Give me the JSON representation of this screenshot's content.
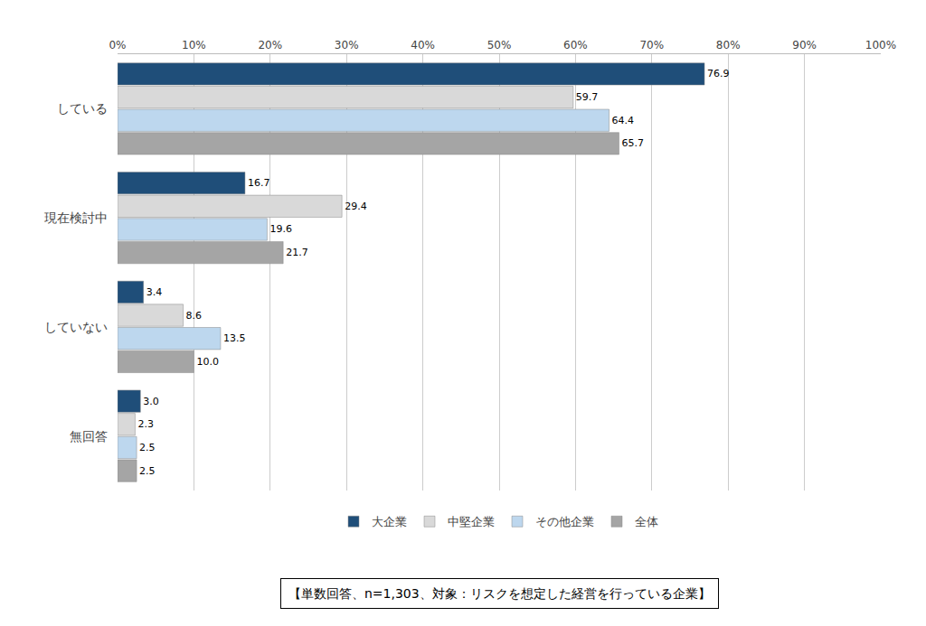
{
  "chart_data": {
    "type": "bar",
    "orientation": "horizontal",
    "categories": [
      "無回答",
      "していない",
      "現在検討中",
      "している"
    ],
    "series": [
      {
        "name": "大企業",
        "color": "#1f4e79",
        "values": [
          3.0,
          3.4,
          16.7,
          76.9
        ],
        "value_labels": [
          "3.0",
          "3.4",
          "16.7",
          "76.9"
        ]
      },
      {
        "name": "中堅企業",
        "color": "#d9d9d9",
        "values": [
          2.3,
          8.6,
          29.4,
          59.7
        ],
        "value_labels": [
          "2.3",
          "8.6",
          "29.4",
          "59.7"
        ]
      },
      {
        "name": "その他企業",
        "color": "#bdd7ee",
        "values": [
          2.5,
          13.5,
          19.6,
          64.4
        ],
        "value_labels": [
          "2.5",
          "13.5",
          "19.6",
          "64.4"
        ]
      },
      {
        "name": "全体",
        "color": "#a5a5a5",
        "values": [
          2.5,
          10.0,
          21.7,
          65.7
        ],
        "value_labels": [
          "2.5",
          "10.0",
          "21.7",
          "65.7"
        ]
      }
    ],
    "xlim": [
      0,
      100
    ],
    "xticks": [
      {
        "value": 0,
        "label": "0%"
      },
      {
        "value": 10,
        "label": "10%"
      },
      {
        "value": 20,
        "label": "20%"
      },
      {
        "value": 30,
        "label": "30%"
      },
      {
        "value": 40,
        "label": "40%"
      },
      {
        "value": 50,
        "label": "50%"
      },
      {
        "value": 60,
        "label": "60%"
      },
      {
        "value": 70,
        "label": "70%"
      },
      {
        "value": 80,
        "label": "80%"
      },
      {
        "value": 90,
        "label": "90%"
      },
      {
        "value": 100,
        "label": "100%"
      }
    ],
    "grid": true,
    "legend": "bottom",
    "data_labels": true,
    "annotations": [
      "【単数回答、n=1,303、対象：リスクを想定した経営を行っている企業】"
    ]
  }
}
